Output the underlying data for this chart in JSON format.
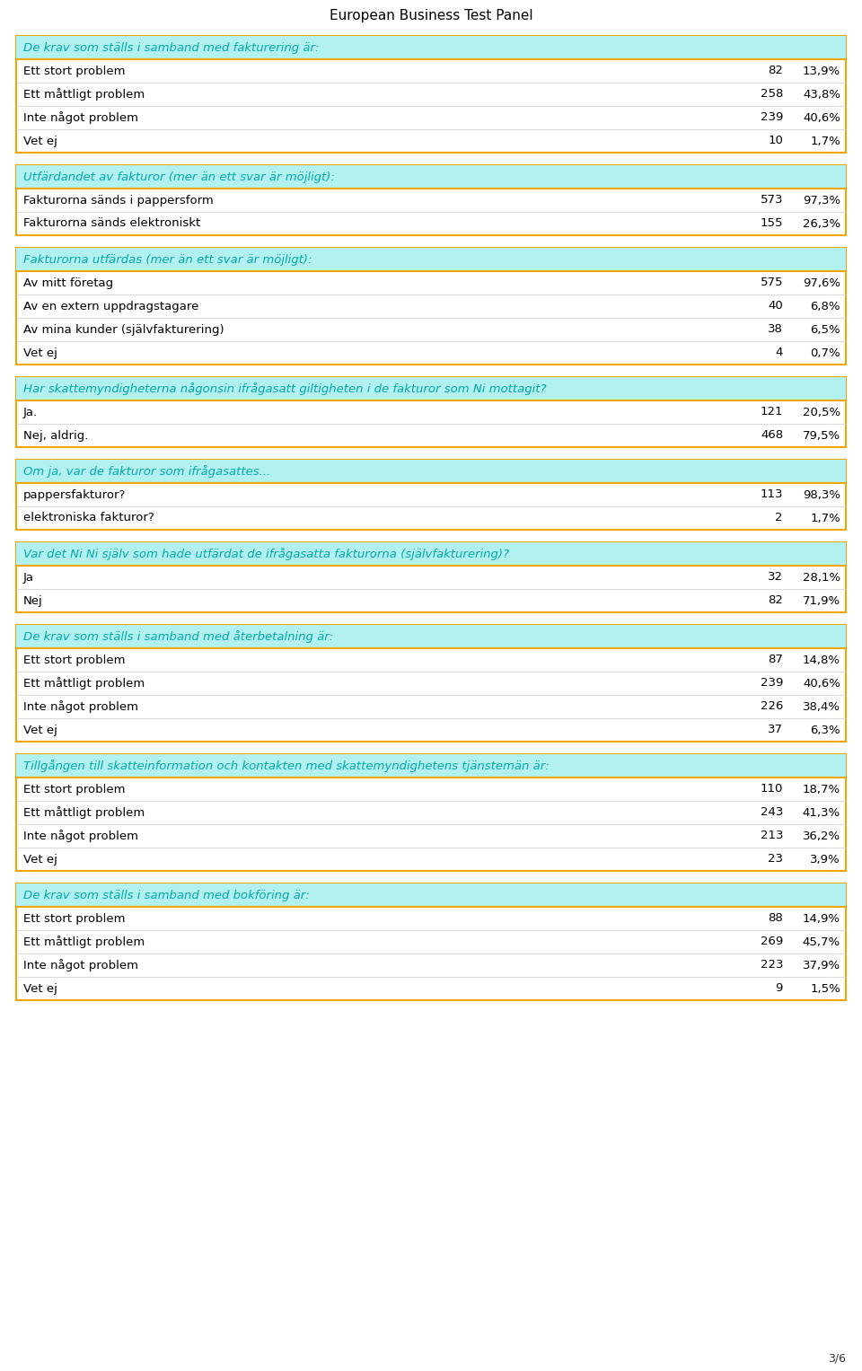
{
  "title": "European Business Test Panel",
  "page_label": "3/6",
  "header_bg": "#b3f0f0",
  "header_border": "#f0a500",
  "header_text_color": "#00aaaa",
  "body_bg": "#ffffff",
  "body_text_color": "#000000",
  "sections": [
    {
      "header": "De krav som ställs i samband med fakturering är:",
      "rows": [
        {
          "label": "Ett stort problem",
          "value": "82",
          "pct": "13,9%"
        },
        {
          "label": "Ett måttligt problem",
          "value": "258",
          "pct": "43,8%"
        },
        {
          "label": "Inte något problem",
          "value": "239",
          "pct": "40,6%"
        },
        {
          "label": "Vet ej",
          "value": "10",
          "pct": "1,7%"
        }
      ]
    },
    {
      "header": "Utfärdandet av fakturor (mer än ett svar är möjligt):",
      "rows": [
        {
          "label": "Fakturorna sänds i pappersform",
          "value": "573",
          "pct": "97,3%"
        },
        {
          "label": "Fakturorna sänds elektroniskt",
          "value": "155",
          "pct": "26,3%"
        }
      ]
    },
    {
      "header": "Fakturorna utfärdas (mer än ett svar är möjligt):",
      "rows": [
        {
          "label": "Av mitt företag",
          "value": "575",
          "pct": "97,6%"
        },
        {
          "label": "Av en extern uppdragstagare",
          "value": "40",
          "pct": "6,8%"
        },
        {
          "label": "Av mina kunder (självfakturering)",
          "value": "38",
          "pct": "6,5%"
        },
        {
          "label": "Vet ej",
          "value": "4",
          "pct": "0,7%"
        }
      ]
    },
    {
      "header": "Har skattemyndigheterna någonsin ifrågasatt giltigheten i de fakturor som Ni mottagit?",
      "rows": [
        {
          "label": "Ja.",
          "value": "121",
          "pct": "20,5%"
        },
        {
          "label": "Nej, aldrig.",
          "value": "468",
          "pct": "79,5%"
        }
      ]
    },
    {
      "header": "Om ja, var de fakturor som ifrågasattes...",
      "rows": [
        {
          "label": "pappersfakturor?",
          "value": "113",
          "pct": "98,3%"
        },
        {
          "label": "elektroniska fakturor?",
          "value": "2",
          "pct": "1,7%"
        }
      ]
    },
    {
      "header": "Var det Ni Ni själv som hade utfärdat de ifrågasatta fakturorna (självfakturering)?",
      "rows": [
        {
          "label": "Ja",
          "value": "32",
          "pct": "28,1%"
        },
        {
          "label": "Nej",
          "value": "82",
          "pct": "71,9%"
        }
      ]
    },
    {
      "header": "De krav som ställs i samband med återbetalning är:",
      "rows": [
        {
          "label": "Ett stort problem",
          "value": "87",
          "pct": "14,8%"
        },
        {
          "label": "Ett måttligt problem",
          "value": "239",
          "pct": "40,6%"
        },
        {
          "label": "Inte något problem",
          "value": "226",
          "pct": "38,4%"
        },
        {
          "label": "Vet ej",
          "value": "37",
          "pct": "6,3%"
        }
      ]
    },
    {
      "header": "Tillgången till skatteinformation och kontakten med skattemyndighetens tjänstemän är:",
      "rows": [
        {
          "label": "Ett stort problem",
          "value": "110",
          "pct": "18,7%"
        },
        {
          "label": "Ett måttligt problem",
          "value": "243",
          "pct": "41,3%"
        },
        {
          "label": "Inte något problem",
          "value": "213",
          "pct": "36,2%"
        },
        {
          "label": "Vet ej",
          "value": "23",
          "pct": "3,9%"
        }
      ]
    },
    {
      "header": "De krav som ställs i samband med bokföring är:",
      "rows": [
        {
          "label": "Ett stort problem",
          "value": "88",
          "pct": "14,9%"
        },
        {
          "label": "Ett måttligt problem",
          "value": "269",
          "pct": "45,7%"
        },
        {
          "label": "Inte något problem",
          "value": "223",
          "pct": "37,9%"
        },
        {
          "label": "Vet ej",
          "value": "9",
          "pct": "1,5%"
        }
      ]
    }
  ]
}
